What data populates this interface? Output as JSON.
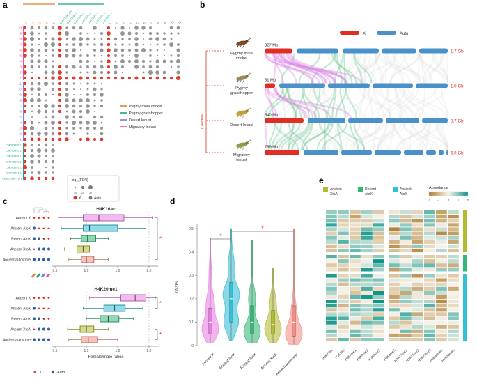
{
  "panel_labels": {
    "a": "a",
    "b": "b",
    "c": "c",
    "d": "d",
    "e": "e"
  },
  "colors": {
    "x_red": "#e02f22",
    "auto_blue": "#4a90c9",
    "dot_gray": "#7a7a7a",
    "auto_dot_blue": "#2d5fa8",
    "mole_cricket": "#e0822c",
    "pygmy_grasshopper": "#19a38a",
    "desert_locust": "#8278d8",
    "migratory_locust": "#e8559a",
    "ancient_x": "#ea7fe3",
    "ancient_atox": "#35bfd4",
    "recent_atox": "#35b877",
    "ancient_xtoa": "#b3bb30",
    "ancient_autosome": "#f58e84",
    "ribbon_magenta": "#dd8ae6",
    "ribbon_green": "#63c88f",
    "ribbon_gray": "#d8d8d8",
    "heat_neg": "#b07d2e",
    "heat_pos": "#0f9488"
  },
  "chart_data": [
    {
      "id": "panel_a",
      "type": "dot-matrix",
      "dot_legend_title": "-log₁₀(FDR)",
      "dot_legend_sizes": [
        "10",
        "20",
        "30"
      ],
      "xa_legend": [
        {
          "label": "X",
          "color_key": "x_red"
        },
        {
          "label": "Auto",
          "color_key": "dot_gray"
        }
      ],
      "species_legend": [
        {
          "label": "Pygmy mole cricket",
          "color_key": "mole_cricket"
        },
        {
          "label": "Pygmy grasshopper",
          "color_key": "pygmy_grasshopper"
        },
        {
          "label": "Desert locust",
          "color_key": "desert_locust"
        },
        {
          "label": "Migratory locust",
          "color_key": "migratory_locust"
        }
      ],
      "col_groups": [
        {
          "species": "mole_cricket",
          "bracket": true,
          "label_color_key": "mole_cricket",
          "labels": [
            "1",
            "2",
            "3",
            "4",
            "5"
          ]
        },
        {
          "species": "pygmy_grasshopper",
          "bracket": true,
          "label_color_key": "pygmy_grasshopper",
          "labels": [
            "CM073590.1(X)",
            "CM073591.1",
            "CM073592.1",
            "CM073593.1",
            "CM073594.1",
            "CM073595.1",
            "CM073596.1"
          ]
        },
        {
          "species": "desert_locust",
          "bracket": false,
          "label_color_key": "dot_gray",
          "labels": [
            "1",
            "2",
            "3",
            "4",
            "5",
            "6",
            "7",
            "8",
            "9",
            "10",
            "11"
          ]
        }
      ],
      "row_groups": [
        {
          "species": "migratory_locust",
          "col_span": 23,
          "x_row": 9,
          "x_cols": [
            0,
            5,
            12
          ],
          "label_size": 4.5,
          "labels": [
            "10",
            "9",
            "8",
            "7",
            "6",
            "5",
            "4",
            "3",
            "2",
            "1"
          ]
        },
        {
          "species": "desert_locust",
          "col_span": 12,
          "x_row": 10,
          "x_cols": [
            0,
            5
          ],
          "label_size": 4.5,
          "labels": [
            "11",
            "10",
            "9",
            "8",
            "7",
            "6",
            "5",
            "4",
            "3",
            "2",
            "1"
          ]
        },
        {
          "species": "pygmy_grasshopper",
          "col_span": 5,
          "x_row": 6,
          "x_cols": [
            0
          ],
          "label_size": 4,
          "labels": [
            "CM073596.1",
            "CM073595.1",
            "CM073594.1",
            "CM073593.1",
            "CM073592.1",
            "CM073591.1",
            "CM073590.1(X)"
          ]
        }
      ],
      "seed": 42
    },
    {
      "id": "panel_b",
      "type": "synteny",
      "legend": [
        {
          "label": "X",
          "color_key": "x_red"
        },
        {
          "label": "Auto",
          "color_key": "auto_blue"
        }
      ],
      "clade_label": "Caelifera",
      "species": [
        {
          "name_lines": [
            "Pygmy mole",
            "cricket"
          ],
          "icon_color": "#7a4e2d",
          "x_label": "327 Mb",
          "x_width": 40,
          "segments": [
            [
              46,
              60
            ],
            [
              112,
              52
            ],
            [
              168,
              50
            ],
            [
              222,
              41
            ]
          ],
          "total": "1.7 Gb"
        },
        {
          "name_lines": [
            "Pygmy",
            "grasshopper"
          ],
          "icon_color": "#9b8a5a",
          "x_label": "81 Mb",
          "x_width": 15,
          "segments": [
            [
              21,
              66
            ],
            [
              91,
              60
            ],
            [
              155,
              58
            ],
            [
              217,
              46
            ]
          ],
          "total": "1.0 Gb"
        },
        {
          "name_lines": [
            "Desert locust"
          ],
          "icon_color": "#c3a23c",
          "x_label": "840 Mb",
          "x_width": 56,
          "segments": [
            [
              62,
              54
            ],
            [
              120,
              50
            ],
            [
              174,
              48
            ],
            [
              226,
              37
            ]
          ],
          "total": "8.7 Gb"
        },
        {
          "name_lines": [
            "Migratory",
            "locust"
          ],
          "icon_color": "#8da04e",
          "x_label": "799 Mb",
          "x_width": 50,
          "segments": [
            [
              56,
              50
            ],
            [
              110,
              44
            ],
            [
              158,
              38
            ],
            [
              200,
              28
            ],
            [
              232,
              14
            ],
            [
              250,
              7
            ],
            [
              261,
              3
            ]
          ],
          "total": "6.9 Gb"
        }
      ],
      "ribbons_per_gap": 70,
      "seed": 11
    },
    {
      "id": "panel_c",
      "type": "boxplot",
      "x_label": "Female/male ratios",
      "x_ticks": [
        "0.5",
        "1.0",
        "1.5",
        "2.0"
      ],
      "x_tick_vals": [
        0.5,
        1.0,
        1.5,
        2.0
      ],
      "dashed_vals": [
        1.0,
        2.0
      ],
      "legend": [
        {
          "icon": "star",
          "label": "X"
        },
        {
          "icon": "dot",
          "label": "Auto"
        }
      ],
      "plots": [
        {
          "title": "H4K16ac",
          "rows": [
            {
              "label": "Ancient X",
              "color_key": "ancient_x",
              "icons": [
                "star",
                "star",
                "star",
                "star"
              ],
              "whisker": [
                0.55,
                2.05
              ],
              "box": [
                0.95,
                1.6
              ],
              "median": 1.2
            },
            {
              "label": "Ancient AtoX",
              "color_key": "ancient_atox",
              "icons": [
                "dot",
                "star",
                "star",
                "star"
              ],
              "whisker": [
                0.6,
                1.95
              ],
              "box": [
                0.95,
                1.5
              ],
              "median": 1.05
            },
            {
              "label": "Recent AtoX",
              "color_key": "recent_atox",
              "icons": [
                "dot",
                "dot",
                "star",
                "star"
              ],
              "whisker": [
                0.75,
                1.35
              ],
              "box": [
                0.92,
                1.15
              ],
              "median": 1.02
            },
            {
              "label": "Ancient XtoA",
              "color_key": "ancient_xtoa",
              "icons": [
                "star",
                "dot",
                "dot",
                "dot"
              ],
              "whisker": [
                0.65,
                1.25
              ],
              "box": [
                0.85,
                1.05
              ],
              "median": 0.95
            },
            {
              "label": "Ancient autosome",
              "color_key": "ancient_autosome",
              "icons": [
                "dot",
                "dot",
                "dot",
                "dot"
              ],
              "whisker": [
                0.72,
                1.35
              ],
              "box": [
                0.92,
                1.12
              ],
              "median": 1.0
            }
          ],
          "sig": [
            {
              "rows": [
                0,
                4
              ],
              "label": "*"
            }
          ]
        },
        {
          "title": "H4K20me1",
          "rows": [
            {
              "label": "Ancient X",
              "color_key": "ancient_x",
              "icons": [
                "star",
                "star",
                "star",
                "star"
              ],
              "whisker": [
                1.05,
                2.1
              ],
              "box": [
                1.55,
                1.95
              ],
              "median": 1.78
            },
            {
              "label": "Ancient AtoX",
              "color_key": "ancient_atox",
              "icons": [
                "dot",
                "star",
                "star",
                "star"
              ],
              "whisker": [
                0.95,
                1.9
              ],
              "box": [
                1.28,
                1.62
              ],
              "median": 1.45
            },
            {
              "label": "Recent AtoX",
              "color_key": "recent_atox",
              "icons": [
                "dot",
                "dot",
                "star",
                "star"
              ],
              "whisker": [
                1.0,
                1.75
              ],
              "box": [
                1.22,
                1.52
              ],
              "median": 1.35
            },
            {
              "label": "Ancient XtoA",
              "color_key": "ancient_xtoa",
              "icons": [
                "star",
                "dot",
                "dot",
                "dot"
              ],
              "whisker": [
                0.7,
                1.35
              ],
              "box": [
                0.9,
                1.12
              ],
              "median": 1.0
            },
            {
              "label": "Ancient autosome",
              "color_key": "ancient_autosome",
              "icons": [
                "dot",
                "dot",
                "dot",
                "dot"
              ],
              "whisker": [
                0.72,
                1.5
              ],
              "box": [
                0.92,
                1.18
              ],
              "median": 1.03
            }
          ],
          "sig": [
            {
              "rows": [
                0,
                1
              ],
              "label": "*"
            },
            {
              "rows": [
                3,
                4
              ],
              "label": "*"
            }
          ]
        }
      ]
    },
    {
      "id": "panel_d",
      "type": "violin",
      "ylabel": "dN/dS",
      "yticks": [
        0,
        0.1,
        0.2,
        0.3,
        0.4,
        0.5
      ],
      "categories": [
        {
          "label": "Ancient X",
          "color_key": "ancient_x",
          "range": [
            0.01,
            0.46
          ],
          "peaks": [
            [
              0.07,
              1.0
            ],
            [
              0.18,
              0.45
            ],
            [
              0.3,
              0.12
            ]
          ],
          "box": [
            0.05,
            0.16
          ],
          "median": 0.1
        },
        {
          "label": "Ancient AtoX",
          "color_key": "ancient_atox",
          "range": [
            0.02,
            0.5
          ],
          "peaks": [
            [
              0.1,
              0.8
            ],
            [
              0.22,
              0.9
            ],
            [
              0.35,
              0.3
            ]
          ],
          "box": [
            0.1,
            0.27
          ],
          "median": 0.2
        },
        {
          "label": "Recent AtoX",
          "color_key": "recent_atox",
          "range": [
            0.01,
            0.45
          ],
          "peaks": [
            [
              0.06,
              1.0
            ],
            [
              0.2,
              0.4
            ]
          ],
          "box": [
            0.05,
            0.17
          ],
          "median": 0.1
        },
        {
          "label": "Ancient XtoA",
          "color_key": "ancient_xtoa",
          "range": [
            0.01,
            0.33
          ],
          "peaks": [
            [
              0.07,
              1.0
            ],
            [
              0.18,
              0.35
            ]
          ],
          "box": [
            0.05,
            0.15
          ],
          "median": 0.09
        },
        {
          "label": "Ancient autosome",
          "color_key": "ancient_autosome",
          "range": [
            0.005,
            0.5
          ],
          "peaks": [
            [
              0.05,
              1.0
            ],
            [
              0.15,
              0.25
            ]
          ],
          "box": [
            0.04,
            0.17
          ],
          "median": 0.1
        }
      ],
      "sig": [
        {
          "cats": [
            0,
            1
          ],
          "label": "*"
        },
        {
          "cats": [
            1,
            4
          ],
          "label": "*"
        }
      ]
    },
    {
      "id": "panel_e",
      "type": "heatmap",
      "legend_groups": [
        {
          "label_lines": [
            "Ancient",
            "XtoA"
          ],
          "color_key": "ancient_xtoa"
        },
        {
          "label_lines": [
            "Recent",
            "AtoX"
          ],
          "color_key": "recent_atox"
        },
        {
          "label_lines": [
            "Ancient",
            "AtoX"
          ],
          "color_key": "ancient_atox"
        }
      ],
      "abundance_label": "Abundance",
      "abundance_ticks": [
        "-2",
        "-1",
        "0",
        "1",
        "2"
      ],
      "col_groups": [
        [
          "H3K27ac",
          "H3K9ac",
          "H3K4me1",
          "H3K4me2",
          "H3K4me3"
        ],
        [
          "H3K9me3",
          "H3K27me1",
          "H3K27me2",
          "H3K27me3",
          "H3K36me3",
          "H4K20me3"
        ]
      ],
      "row_groups": [
        {
          "color_key": "ancient_xtoa",
          "rows": 10
        },
        {
          "color_key": "recent_atox",
          "rows": 4
        },
        {
          "color_key": "ancient_atox",
          "rows": 16
        }
      ],
      "col_bias": [
        0.5,
        0.3,
        0.2,
        0.6,
        0.7,
        -0.3,
        0.0,
        -0.2,
        0.3,
        -0.4,
        -0.1
      ],
      "group_bias": [
        -0.2,
        0.15,
        0.05
      ],
      "seed": 5
    }
  ]
}
